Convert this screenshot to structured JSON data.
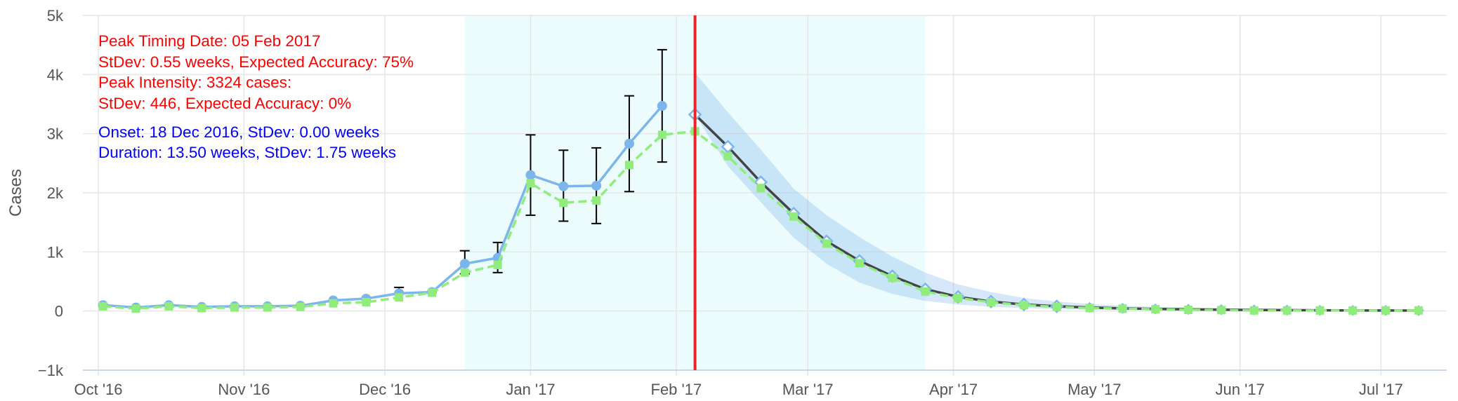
{
  "chart_data": {
    "type": "line",
    "ylabel": "Cases",
    "xlabel": "",
    "ylim": [
      -1000,
      5000
    ],
    "y_ticks": [
      {
        "value": -1000,
        "label": "−1k"
      },
      {
        "value": 0,
        "label": "0"
      },
      {
        "value": 1000,
        "label": "1k"
      },
      {
        "value": 2000,
        "label": "2k"
      },
      {
        "value": 3000,
        "label": "3k"
      },
      {
        "value": 4000,
        "label": "4k"
      },
      {
        "value": 5000,
        "label": "5k"
      }
    ],
    "xlim": [
      "2016-10-01",
      "2017-07-15"
    ],
    "x_ticks": [
      {
        "value": "2016-10-01",
        "label": "Oct '16"
      },
      {
        "value": "2016-11-01",
        "label": "Nov '16"
      },
      {
        "value": "2016-12-01",
        "label": "Dec '16"
      },
      {
        "value": "2017-01-01",
        "label": "Jan '17"
      },
      {
        "value": "2017-02-01",
        "label": "Feb '17"
      },
      {
        "value": "2017-03-01",
        "label": "Mar '17"
      },
      {
        "value": "2017-04-01",
        "label": "Apr '17"
      },
      {
        "value": "2017-05-01",
        "label": "May '17"
      },
      {
        "value": "2017-06-01",
        "label": "Jun '17"
      },
      {
        "value": "2017-07-01",
        "label": "Jul '17"
      }
    ],
    "grid": true,
    "shaded_region": {
      "start": "2016-12-18",
      "end": "2017-03-26"
    },
    "peak_marker": {
      "date": "2017-02-05",
      "color": "#e8262a"
    },
    "series": [
      {
        "color": "#7cb5ec",
        "style": "solid",
        "marker": "circle",
        "x": [
          "2016-10-02",
          "2016-10-09",
          "2016-10-16",
          "2016-10-23",
          "2016-10-30",
          "2016-11-06",
          "2016-11-13",
          "2016-11-20",
          "2016-11-27",
          "2016-12-04",
          "2016-12-11",
          "2016-12-18",
          "2016-12-25",
          "2017-01-01",
          "2017-01-08",
          "2017-01-15",
          "2017-01-22",
          "2017-01-29"
        ],
        "values": [
          100,
          60,
          100,
          70,
          80,
          80,
          90,
          180,
          210,
          300,
          320,
          800,
          900,
          2300,
          2110,
          2120,
          2830,
          3470
        ],
        "error_low": [
          null,
          null,
          null,
          null,
          null,
          null,
          null,
          null,
          null,
          null,
          null,
          630,
          650,
          1620,
          1520,
          1480,
          2020,
          2520
        ],
        "error_high": [
          null,
          null,
          null,
          null,
          null,
          null,
          null,
          null,
          null,
          400,
          null,
          1020,
          1160,
          2980,
          2720,
          2760,
          3640,
          4420
        ]
      },
      {
        "color": "#90ed7d",
        "style": "dashed",
        "marker": "square",
        "x": [
          "2016-10-02",
          "2016-10-09",
          "2016-10-16",
          "2016-10-23",
          "2016-10-30",
          "2016-11-06",
          "2016-11-13",
          "2016-11-20",
          "2016-11-27",
          "2016-12-04",
          "2016-12-11",
          "2016-12-18",
          "2016-12-25",
          "2017-01-01",
          "2017-01-08",
          "2017-01-15",
          "2017-01-22",
          "2017-01-29",
          "2017-02-05",
          "2017-02-12",
          "2017-02-19",
          "2017-02-26",
          "2017-03-05",
          "2017-03-12",
          "2017-03-19",
          "2017-03-26",
          "2017-04-02",
          "2017-04-09",
          "2017-04-16",
          "2017-04-23",
          "2017-04-30",
          "2017-05-07",
          "2017-05-14",
          "2017-05-21",
          "2017-05-28",
          "2017-06-04",
          "2017-06-11",
          "2017-06-18",
          "2017-06-25",
          "2017-07-02",
          "2017-07-09"
        ],
        "values": [
          80,
          40,
          80,
          50,
          60,
          60,
          70,
          130,
          150,
          230,
          310,
          650,
          780,
          2160,
          1830,
          1870,
          2470,
          2980,
          3040,
          2620,
          2080,
          1600,
          1140,
          810,
          560,
          330,
          220,
          150,
          100,
          70,
          50,
          40,
          30,
          20,
          15,
          10,
          10,
          10,
          10,
          10,
          10
        ]
      },
      {
        "color": "#434348",
        "style": "solid",
        "marker": "diamond",
        "x": [
          "2017-02-05",
          "2017-02-12",
          "2017-02-19",
          "2017-02-26",
          "2017-03-05",
          "2017-03-12",
          "2017-03-19",
          "2017-03-26",
          "2017-04-02",
          "2017-04-09",
          "2017-04-16",
          "2017-04-23",
          "2017-04-30",
          "2017-05-07",
          "2017-05-14",
          "2017-05-21",
          "2017-05-28",
          "2017-06-04",
          "2017-06-11",
          "2017-06-18",
          "2017-06-25",
          "2017-07-02",
          "2017-07-09"
        ],
        "values": [
          3324,
          2780,
          2180,
          1650,
          1180,
          850,
          590,
          370,
          240,
          160,
          110,
          80,
          60,
          45,
          35,
          28,
          22,
          18,
          15,
          12,
          10,
          9,
          8
        ],
        "band_low": [
          3324,
          2450,
          1840,
          1240,
          800,
          480,
          290,
          170,
          110,
          70,
          50,
          35,
          25,
          20,
          15,
          12,
          10,
          8,
          6,
          5,
          4,
          3,
          3
        ],
        "band_high": [
          4030,
          3360,
          2730,
          2070,
          1620,
          1250,
          920,
          650,
          450,
          320,
          220,
          160,
          120,
          90,
          70,
          55,
          45,
          35,
          30,
          25,
          20,
          18,
          15
        ]
      }
    ]
  },
  "annotations": {
    "red": [
      "Peak Timing Date: 05 Feb 2017",
      "StDev: 0.55 weeks, Expected Accuracy: 75%",
      "Peak Intensity: 3324 cases:",
      "StDev: 446, Expected Accuracy: 0%"
    ],
    "blue": [
      "Onset: 18 Dec 2016, StDev: 0.00 weeks",
      "Duration: 13.50 weeks, StDev: 1.75 weeks"
    ]
  }
}
